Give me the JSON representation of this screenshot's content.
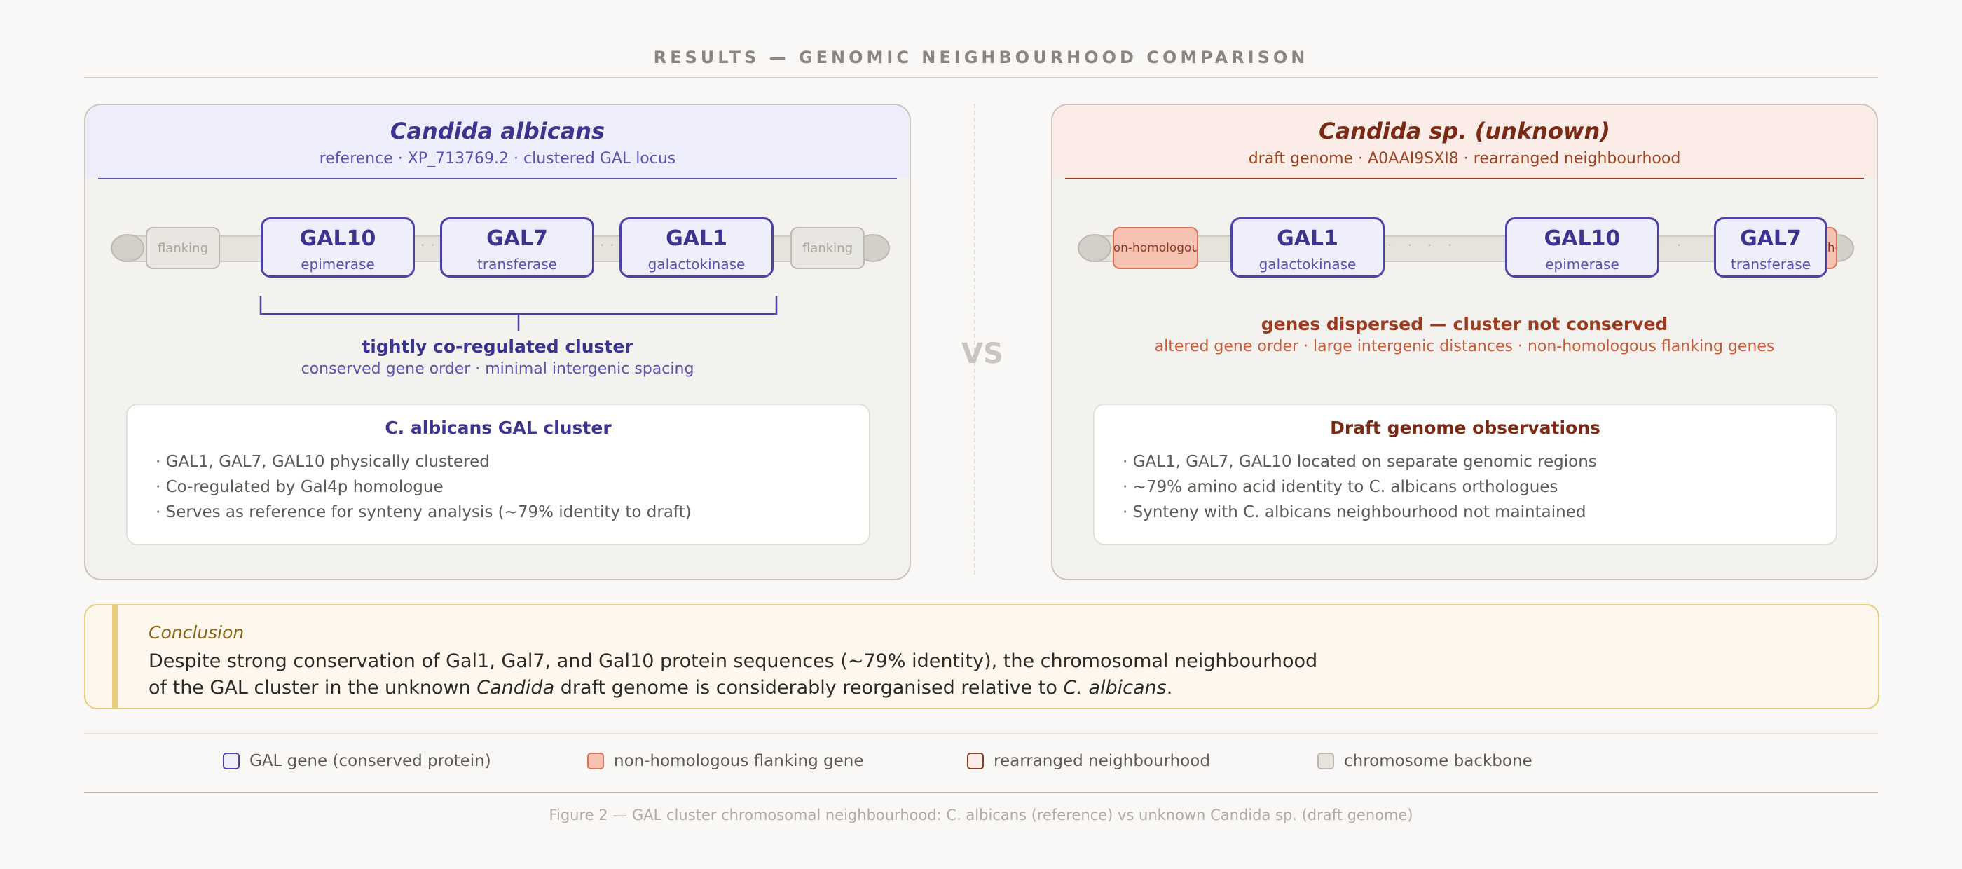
{
  "header": {
    "title": "RESULTS — GENOMIC NEIGHBOURHOOD COMPARISON"
  },
  "left_panel": {
    "title": "Candida albicans",
    "subtitle": "reference · XP_713769.2 · clustered GAL locus",
    "flank_left": "flanking",
    "flank_right": "flanking",
    "genes": [
      {
        "name": "GAL10",
        "function": "epimerase"
      },
      {
        "name": "GAL7",
        "function": "transferase"
      },
      {
        "name": "GAL1",
        "function": "galactokinase"
      }
    ],
    "cluster_label": "tightly co-regulated cluster",
    "cluster_sub": "conserved gene order · minimal intergenic spacing",
    "box": {
      "title": "C. albicans GAL cluster",
      "lines": [
        "· GAL1, GAL7, GAL10 physically clustered",
        "· Co-regulated by Gal4p homologue",
        "· Serves as reference for synteny analysis (~79% identity to draft)"
      ]
    }
  },
  "vs_label": "VS",
  "right_panel": {
    "title": "Candida sp. (unknown)",
    "subtitle": "draft genome · A0AAI9SXI8 · rearranged neighbourhood",
    "nonhom_left": "non-homologous",
    "nonhom_right": "non-homologous",
    "genes": [
      {
        "name": "GAL1",
        "function": "galactokinase"
      },
      {
        "name": "GAL10",
        "function": "epimerase"
      },
      {
        "name": "GAL7",
        "function": "transferase"
      }
    ],
    "dispersed_label": "genes dispersed — cluster not conserved",
    "dispersed_sub": "altered gene order · large intergenic distances · non-homologous flanking genes",
    "box": {
      "title": "Draft genome observations",
      "lines": [
        "· GAL1, GAL7, GAL10 located on separate genomic regions",
        "· ~79% amino acid identity to C. albicans orthologues",
        "· Synteny with C. albicans neighbourhood not maintained"
      ]
    }
  },
  "conclusion": {
    "label": "Conclusion",
    "line1": "Despite strong conservation of Gal1, Gal7, and Gal10 protein sequences (~79% identity), the chromosomal neighbourhood",
    "line2_a": "of the GAL cluster in the unknown ",
    "line2_b": "Candida",
    "line2_c": " draft genome is considerably reorganised relative to ",
    "line2_d": "C. albicans",
    "line2_e": "."
  },
  "legend": [
    {
      "label": "GAL gene (conserved protein)",
      "fill": "#efeefb",
      "stroke": "#4a42a8"
    },
    {
      "label": "non-homologous flanking gene",
      "fill": "#f6c2b2",
      "stroke": "#d8745a"
    },
    {
      "label": "rearranged neighbourhood",
      "fill": "#fbece8",
      "stroke": "#8a3a22"
    },
    {
      "label": "chromosome backbone",
      "fill": "#e6e3dd",
      "stroke": "#bdbab3"
    }
  ],
  "caption": "Figure 2 — GAL cluster chromosomal neighbourhood: C. albicans (reference) vs unknown Candida sp. (draft genome)",
  "colors": {
    "reference_accent": "#3b3590",
    "draft_accent": "#7a2a14",
    "draft_warning": "#c85a38",
    "conclusion_accent": "#e8cd7a"
  }
}
